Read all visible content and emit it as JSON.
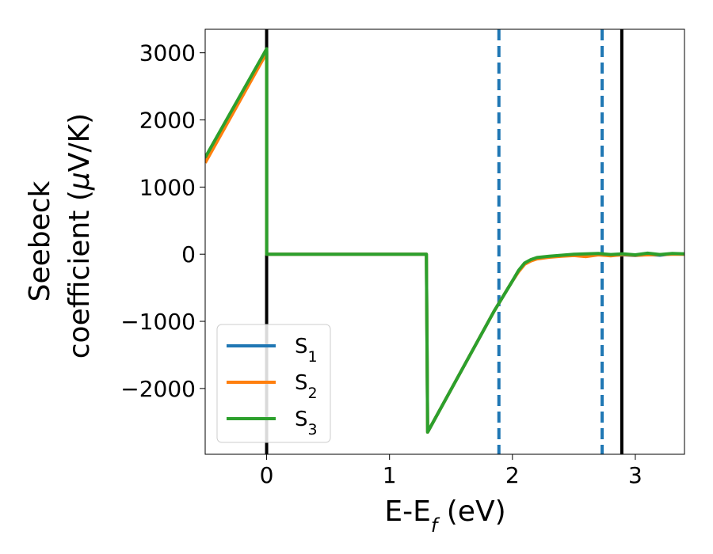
{
  "chart_data": {
    "type": "line",
    "xlabel_main": "E-E",
    "xlabel_sub": "f",
    "xlabel_unit": " (eV)",
    "ylabel_line1": "Seebeck",
    "ylabel_line2_pre": "coefficient  (",
    "ylabel_mu": "μ",
    "ylabel_line2_post": "V/K)",
    "xlim": [
      -0.5,
      3.4
    ],
    "ylim": [
      -2980,
      3350
    ],
    "xticks": [
      0,
      1,
      2,
      3
    ],
    "xtick_labels": [
      "0",
      "1",
      "2",
      "3"
    ],
    "yticks": [
      -2000,
      -1000,
      0,
      1000,
      2000,
      3000
    ],
    "ytick_labels": [
      "−2000",
      "−1000",
      "0",
      "1000",
      "2000",
      "3000"
    ],
    "legend_position": "lower-left",
    "grid": false,
    "series": [
      {
        "name": "S",
        "sub": "1",
        "color": "#1f77b4",
        "points": [
          [
            -0.5,
            1400
          ],
          [
            0.0,
            3030
          ],
          [
            0.0,
            0
          ],
          [
            1.3,
            0
          ],
          [
            1.31,
            -2650
          ],
          [
            1.85,
            -850
          ],
          [
            2.0,
            -400
          ],
          [
            2.05,
            -250
          ],
          [
            2.1,
            -140
          ],
          [
            2.15,
            -90
          ],
          [
            2.2,
            -60
          ],
          [
            2.3,
            -40
          ],
          [
            2.4,
            -25
          ],
          [
            2.5,
            -15
          ],
          [
            2.6,
            -25
          ],
          [
            2.7,
            -5
          ],
          [
            2.8,
            -15
          ],
          [
            2.9,
            -10
          ],
          [
            3.0,
            -20
          ],
          [
            3.1,
            -5
          ],
          [
            3.2,
            -15
          ],
          [
            3.3,
            5
          ],
          [
            3.4,
            0
          ]
        ]
      },
      {
        "name": "S",
        "sub": "2",
        "color": "#ff7f0e",
        "points": [
          [
            -0.5,
            1360
          ],
          [
            0.0,
            3000
          ],
          [
            0.0,
            0
          ],
          [
            1.3,
            0
          ],
          [
            1.31,
            -2650
          ],
          [
            1.85,
            -850
          ],
          [
            2.0,
            -400
          ],
          [
            2.05,
            -260
          ],
          [
            2.1,
            -150
          ],
          [
            2.15,
            -100
          ],
          [
            2.2,
            -70
          ],
          [
            2.3,
            -45
          ],
          [
            2.4,
            -30
          ],
          [
            2.5,
            -20
          ],
          [
            2.6,
            -35
          ],
          [
            2.7,
            -10
          ],
          [
            2.8,
            -25
          ],
          [
            2.9,
            -5
          ],
          [
            3.0,
            -15
          ],
          [
            3.1,
            -10
          ],
          [
            3.2,
            -5
          ],
          [
            3.3,
            0
          ],
          [
            3.4,
            0
          ]
        ]
      },
      {
        "name": "S",
        "sub": "3",
        "color": "#2ca02c",
        "points": [
          [
            -0.5,
            1440
          ],
          [
            0.0,
            3060
          ],
          [
            0.0,
            0
          ],
          [
            1.3,
            0
          ],
          [
            1.31,
            -2650
          ],
          [
            1.85,
            -850
          ],
          [
            2.0,
            -400
          ],
          [
            2.05,
            -240
          ],
          [
            2.1,
            -130
          ],
          [
            2.15,
            -80
          ],
          [
            2.2,
            -50
          ],
          [
            2.3,
            -30
          ],
          [
            2.4,
            -15
          ],
          [
            2.5,
            0
          ],
          [
            2.6,
            5
          ],
          [
            2.7,
            10
          ],
          [
            2.8,
            -5
          ],
          [
            2.9,
            5
          ],
          [
            3.0,
            -10
          ],
          [
            3.1,
            15
          ],
          [
            3.2,
            -5
          ],
          [
            3.3,
            10
          ],
          [
            3.4,
            5
          ]
        ]
      }
    ],
    "vlines": [
      {
        "x": 0.0,
        "color": "#000000",
        "style": "solid"
      },
      {
        "x": 2.89,
        "color": "#000000",
        "style": "solid"
      },
      {
        "x": 1.89,
        "color": "#1f77b4",
        "style": "dashed"
      },
      {
        "x": 2.73,
        "color": "#1f77b4",
        "style": "dashed"
      }
    ]
  }
}
